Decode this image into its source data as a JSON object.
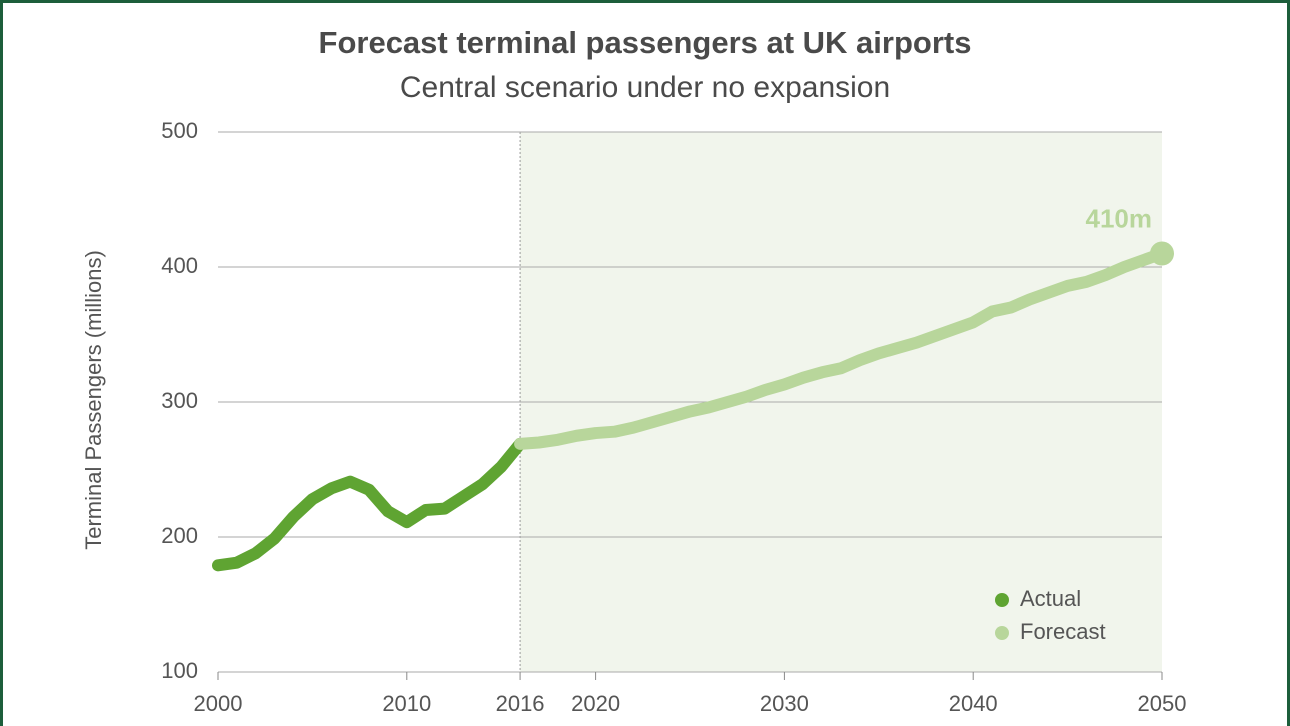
{
  "chart_data": {
    "type": "line",
    "title": "Forecast terminal passengers at UK airports",
    "subtitle": "Central scenario under no expansion",
    "y_label": "Terminal Passengers (millions)",
    "xlim": [
      2000,
      2050
    ],
    "xticks": [
      2000,
      2010,
      2016,
      2020,
      2030,
      2040,
      2050
    ],
    "ylim": [
      100,
      500
    ],
    "yticks": [
      100,
      200,
      300,
      400,
      500
    ],
    "grid": true,
    "legend": "lower right",
    "series": [
      {
        "name": "Actual",
        "color": "#5fa432",
        "x": [
          2000,
          2001,
          2002,
          2003,
          2004,
          2005,
          2006,
          2007,
          2008,
          2009,
          2010,
          2011,
          2012,
          2013,
          2014,
          2015,
          2016
        ],
        "values": [
          179,
          181,
          188,
          199,
          215,
          228,
          236,
          241,
          235,
          219,
          211,
          220,
          221,
          230,
          239,
          252,
          269
        ]
      },
      {
        "name": "Forecast",
        "color": "#b8d69b",
        "x": [
          2016,
          2017,
          2018,
          2019,
          2020,
          2021,
          2022,
          2023,
          2024,
          2025,
          2026,
          2027,
          2028,
          2029,
          2030,
          2031,
          2032,
          2033,
          2034,
          2035,
          2036,
          2037,
          2038,
          2039,
          2040,
          2041,
          2042,
          2043,
          2044,
          2045,
          2046,
          2047,
          2048,
          2049,
          2050
        ],
        "values": [
          269,
          270,
          272,
          275,
          277,
          278,
          281,
          285,
          289,
          293,
          296,
          300,
          304,
          309,
          313,
          318,
          322,
          325,
          331,
          336,
          340,
          344,
          349,
          354,
          359,
          367,
          370,
          376,
          381,
          386,
          389,
          394,
          400,
          405,
          410
        ],
        "value_labels": [
          null,
          null,
          null,
          null,
          null,
          null,
          null,
          null,
          null,
          null,
          null,
          null,
          null,
          null,
          null,
          null,
          null,
          null,
          null,
          null,
          null,
          null,
          null,
          null,
          null,
          null,
          null,
          null,
          null,
          null,
          null,
          null,
          null,
          null,
          "410m"
        ]
      }
    ]
  }
}
